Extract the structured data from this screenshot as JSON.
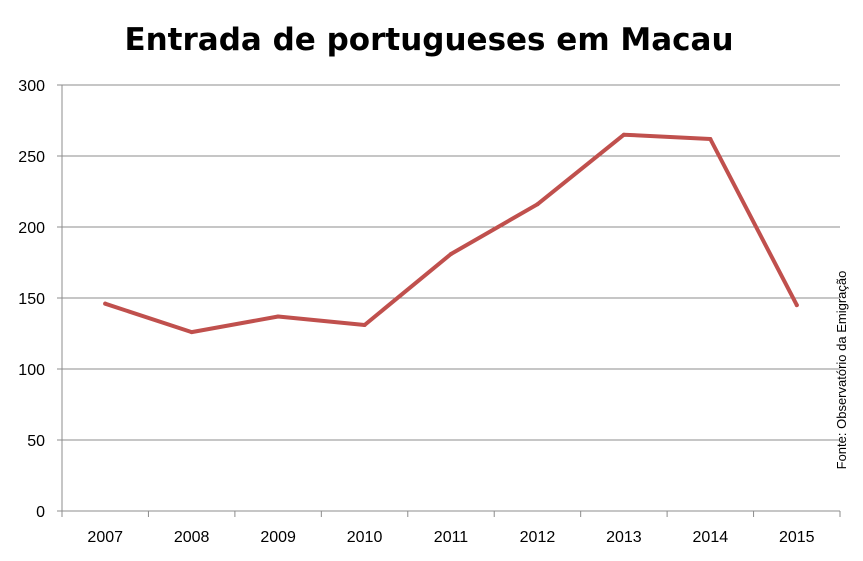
{
  "chart_data": {
    "type": "line",
    "title": "Entrada de portugueses em Macau",
    "source": "Fonte: Observatório da Emigração",
    "categories": [
      "2007",
      "2008",
      "2009",
      "2010",
      "2011",
      "2012",
      "2013",
      "2014",
      "2015"
    ],
    "series": [
      {
        "values": [
          146,
          126,
          137,
          131,
          181,
          216,
          265,
          262,
          145
        ]
      }
    ],
    "ylim": [
      0,
      300
    ],
    "yticks": [
      "0",
      "50",
      "100",
      "150",
      "200",
      "250",
      "300"
    ],
    "grid": true,
    "legend": "none",
    "line_color": "#c0504d"
  }
}
